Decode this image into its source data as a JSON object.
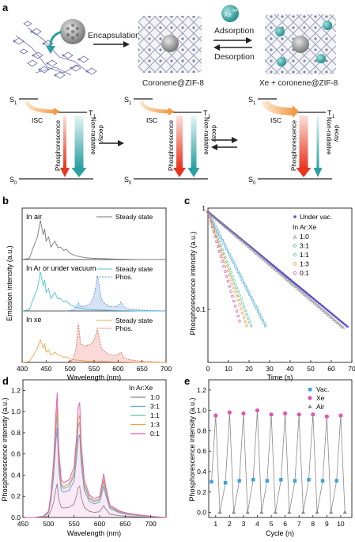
{
  "panel_a": {
    "label": "a",
    "encapsulation": "Encapsulation",
    "adsorption": "Adsorption",
    "desorption": "Desorption",
    "xe_badge": "Xe",
    "xe_badge_sup": "54",
    "caption_mid": "Coronene@ZIF-8",
    "caption_right": "Xe + coronene@ZIF-8",
    "s1": "S",
    "s1_sub": "1",
    "t1": "T",
    "t1_sub": "1",
    "s0": "S",
    "s0_sub": "0",
    "isc": "ISC",
    "phosphorescence": "Phosphorescence",
    "nonrad_1": "Non-radiative",
    "nonrad_2": "decay",
    "colors": {
      "isc": "#f3a35a",
      "phos_top": "#f8c7c0",
      "phos_bottom": "#e8361e",
      "nonrad_top": "#d7eeee",
      "nonrad_bottom": "#2aa0a0",
      "xe": "#2a9d9d"
    }
  },
  "panel_b": {
    "label": "b",
    "ylabel": "Emission intensity (a.u.)",
    "xlabel": "Wavelength (nm)",
    "xticks": [
      "400",
      "450",
      "500",
      "550",
      "600",
      "650",
      "700"
    ],
    "sub1_title": "In air",
    "sub2_title": "In Ar or under vacuum",
    "sub3_title": "In xe",
    "legend_steady": "Steady state",
    "legend_phos": "Phos."
  },
  "panel_c": {
    "label": "c",
    "ylabel": "Phosphorescence intensity (a.u.)",
    "xlabel": "Time (s)",
    "xticks": [
      "0",
      "10",
      "20",
      "30",
      "40",
      "50",
      "60",
      "70"
    ],
    "yticks": [
      "1",
      "0.1"
    ],
    "legend_vac": "Under vac.",
    "legend_title": "In Ar:Xe",
    "legend_items": [
      "1:0",
      "3:1",
      "1:1",
      "1:3",
      "0:1"
    ]
  },
  "panel_d": {
    "label": "d",
    "ylabel": "Phosphorescence intensity (a.u.)",
    "xlabel": "Wavelength (nm)",
    "xticks": [
      "450",
      "500",
      "550",
      "600",
      "650",
      "700"
    ],
    "yticks": [
      "0.0",
      "0.2",
      "0.4",
      "0.6",
      "0.8",
      "1.0",
      "1.2"
    ],
    "legend_title": "In Ar:Xe",
    "legend_items": [
      "1:0",
      "3:1",
      "1:1",
      "1:3",
      "0:1"
    ]
  },
  "panel_e": {
    "label": "e",
    "ylabel": "Phosphorescence intensity (a.u.)",
    "xlabel": "Cycle (n)",
    "xticks": [
      "1",
      "2",
      "3",
      "4",
      "5",
      "6",
      "7",
      "8",
      "9",
      "10"
    ],
    "yticks": [
      "0.0",
      "0.2",
      "0.4",
      "0.6",
      "0.8",
      "1.0",
      "1.2"
    ],
    "legend_items": [
      "Vac.",
      "Xe",
      "Air"
    ]
  },
  "chart_data": [
    {
      "panel": "b",
      "type": "area",
      "xlim": [
        400,
        700
      ],
      "series": [
        {
          "name": "Steady state",
          "subplot": "In air",
          "color": "#7a7a7a",
          "x": [
            400,
            415,
            425,
            432,
            438,
            444,
            447,
            450,
            455,
            460,
            468,
            474,
            480,
            487,
            492,
            500,
            510,
            520,
            535,
            550,
            570,
            600,
            650,
            700
          ],
          "y": [
            0,
            0.03,
            0.35,
            0.55,
            0.95,
            0.6,
            0.75,
            0.45,
            0.55,
            0.3,
            0.45,
            0.3,
            0.3,
            0.22,
            0.25,
            0.15,
            0.1,
            0.07,
            0.04,
            0.03,
            0.02,
            0.01,
            0,
            0
          ]
        },
        {
          "name": "Steady state",
          "subplot": "In Ar or under vacuum",
          "color": "#52c4cc",
          "x": [
            400,
            415,
            425,
            432,
            438,
            444,
            447,
            450,
            455,
            460,
            468,
            474,
            480,
            487,
            492,
            500,
            510,
            520,
            535,
            550,
            570,
            600,
            650,
            700
          ],
          "y": [
            0,
            0.03,
            0.35,
            0.55,
            0.95,
            0.6,
            0.75,
            0.45,
            0.55,
            0.3,
            0.45,
            0.3,
            0.3,
            0.22,
            0.25,
            0.15,
            0.1,
            0.07,
            0.04,
            0.03,
            0.02,
            0.01,
            0,
            0
          ]
        },
        {
          "name": "Phos.",
          "subplot": "In Ar or under vacuum",
          "color": "#5b8fd6",
          "x": [
            490,
            505,
            512,
            517,
            522,
            530,
            540,
            548,
            553,
            557,
            561,
            565,
            570,
            580,
            590,
            600,
            606,
            612,
            620,
            640,
            660,
            700
          ],
          "y": [
            0,
            0.02,
            0.08,
            0.2,
            0.1,
            0.12,
            0.15,
            0.3,
            0.55,
            0.85,
            0.6,
            0.3,
            0.2,
            0.12,
            0.1,
            0.12,
            0.22,
            0.1,
            0.05,
            0.03,
            0.01,
            0
          ]
        },
        {
          "name": "Steady state",
          "subplot": "In xe",
          "color": "#f0a850",
          "x": [
            400,
            415,
            425,
            432,
            438,
            444,
            447,
            450,
            455,
            460,
            468,
            474,
            480,
            487,
            492,
            500,
            510,
            520,
            535,
            550,
            570,
            600,
            650,
            700
          ],
          "y": [
            0,
            0.02,
            0.2,
            0.35,
            0.55,
            0.35,
            0.45,
            0.25,
            0.3,
            0.18,
            0.25,
            0.18,
            0.17,
            0.12,
            0.14,
            0.08,
            0.06,
            0.05,
            0.03,
            0.02,
            0.02,
            0.01,
            0,
            0
          ]
        },
        {
          "name": "Phos.",
          "subplot": "In xe",
          "color": "#e86b5a",
          "x": [
            490,
            505,
            512,
            517,
            522,
            530,
            540,
            548,
            553,
            557,
            561,
            565,
            570,
            580,
            590,
            600,
            606,
            612,
            620,
            640,
            660,
            700
          ],
          "y": [
            0,
            0.05,
            0.3,
            0.95,
            0.45,
            0.4,
            0.42,
            0.5,
            0.65,
            0.8,
            0.55,
            0.35,
            0.28,
            0.2,
            0.17,
            0.18,
            0.25,
            0.12,
            0.07,
            0.04,
            0.02,
            0
          ]
        }
      ]
    },
    {
      "panel": "c",
      "type": "scatter",
      "log_y": true,
      "xlim": [
        0,
        70
      ],
      "ylim": [
        0.03,
        1
      ],
      "series": [
        {
          "name": "Under vac.",
          "color": "#5a4fcf",
          "tau": 26.0,
          "t_end": 68
        },
        {
          "name": "1:0",
          "color": "#8a8a8a",
          "tau": 25.0,
          "t_end": 66
        },
        {
          "name": "3:1",
          "color": "#4aa8d8",
          "tau": 10.8,
          "t_end": 28
        },
        {
          "name": "1:1",
          "color": "#56c2a0",
          "tau": 8.1,
          "t_end": 21
        },
        {
          "name": "1:3",
          "color": "#f0a040",
          "tau": 7.3,
          "t_end": 19
        },
        {
          "name": "0:1",
          "color": "#e056b0",
          "tau": 6.2,
          "t_end": 16
        }
      ]
    },
    {
      "panel": "d",
      "type": "line",
      "xlim": [
        450,
        730
      ],
      "ylim": [
        0,
        1.3
      ],
      "x": [
        450,
        470,
        490,
        500,
        505,
        510,
        514,
        517,
        520,
        525,
        530,
        540,
        550,
        555,
        558,
        561,
        564,
        570,
        580,
        590,
        600,
        605,
        608,
        612,
        620,
        640,
        660,
        680,
        700,
        730
      ],
      "base_shape": [
        0,
        0,
        0.01,
        0.05,
        0.2,
        0.45,
        0.8,
        1.0,
        0.55,
        0.3,
        0.28,
        0.3,
        0.4,
        0.65,
        0.88,
        0.92,
        0.6,
        0.3,
        0.18,
        0.15,
        0.17,
        0.28,
        0.35,
        0.25,
        0.1,
        0.05,
        0.03,
        0.02,
        0.01,
        0
      ],
      "series": [
        {
          "name": "1:0",
          "color": "#8a8a8a",
          "scale": 0.32
        },
        {
          "name": "3:1",
          "color": "#4aa8d8",
          "scale": 0.85
        },
        {
          "name": "1:1",
          "color": "#56c2a0",
          "scale": 0.98
        },
        {
          "name": "1:3",
          "color": "#f0a040",
          "scale": 1.05
        },
        {
          "name": "0:1",
          "color": "#e056b0",
          "scale": 1.18
        }
      ]
    },
    {
      "panel": "e",
      "type": "scatter",
      "xlim": [
        0.5,
        10.8
      ],
      "ylim": [
        -0.05,
        1.3
      ],
      "categories": [
        "1",
        "2",
        "3",
        "4",
        "5",
        "6",
        "7",
        "8",
        "9",
        "10"
      ],
      "series": [
        {
          "name": "Vac.",
          "color": "#3aa0e0",
          "marker": "square",
          "values": [
            0.3,
            0.29,
            0.31,
            0.32,
            0.31,
            0.32,
            0.31,
            0.32,
            0.31,
            0.31
          ]
        },
        {
          "name": "Xe",
          "color": "#e056b0",
          "marker": "circle",
          "values": [
            0.95,
            0.98,
            0.97,
            1.0,
            0.96,
            0.97,
            0.96,
            0.96,
            0.94,
            0.95
          ]
        },
        {
          "name": "Air",
          "color": "#8a8a8a",
          "marker": "triangle",
          "values": [
            0,
            0,
            0,
            0,
            0,
            0,
            0,
            0,
            0,
            0
          ]
        }
      ]
    }
  ]
}
